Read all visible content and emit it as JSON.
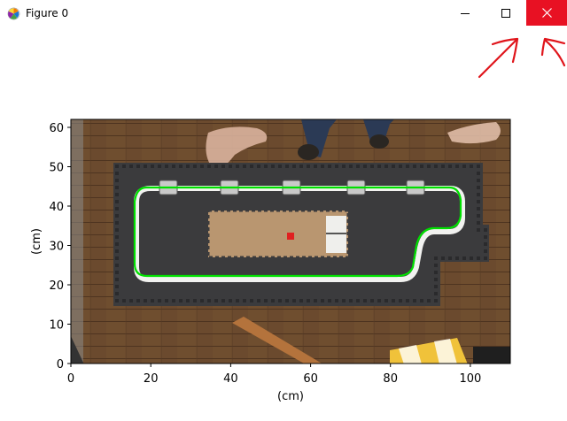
{
  "window": {
    "title": "Figure 0",
    "icons": [
      "matplotlib-logo-icon",
      "minimize-icon",
      "maximize-icon",
      "close-icon"
    ],
    "close_color": "#e81123"
  },
  "plot": {
    "xlabel": "(cm)",
    "ylabel": "(cm)",
    "xlim": [
      0,
      110
    ],
    "ylim": [
      0,
      62
    ],
    "xticks": [
      "0",
      "20",
      "40",
      "60",
      "80",
      "100"
    ],
    "yticks": [
      "0",
      "10",
      "20",
      "30",
      "40",
      "50",
      "60"
    ],
    "image_content": "overhead-photo-of-robot-track",
    "path_color": "#00e000"
  }
}
